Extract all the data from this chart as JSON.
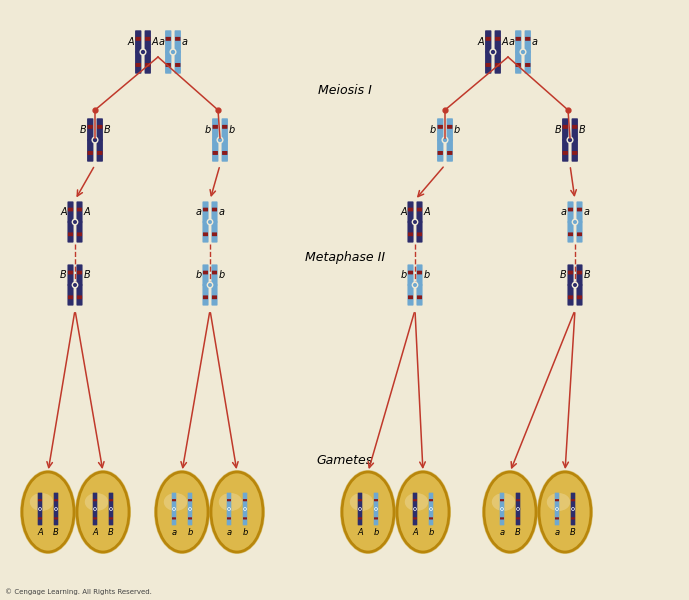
{
  "bg_color": "#f0ead6",
  "dark_chr": "#2d2d6b",
  "light_chr": "#6fa8d0",
  "band_col": "#8b1a1a",
  "arrow_col": "#c0392b",
  "text_col": "#000000",
  "gamete_fill": "#ddb84a",
  "gamete_edge": "#b8860b",
  "copyright": "© Cengage Learning. All Rights Reserved.",
  "meiosis_i": "Meiosis I",
  "metaphase_ii": "Metaphase II",
  "gametes_lbl": "Gametes",
  "figw": 6.89,
  "figh": 6.0,
  "dpi": 100
}
